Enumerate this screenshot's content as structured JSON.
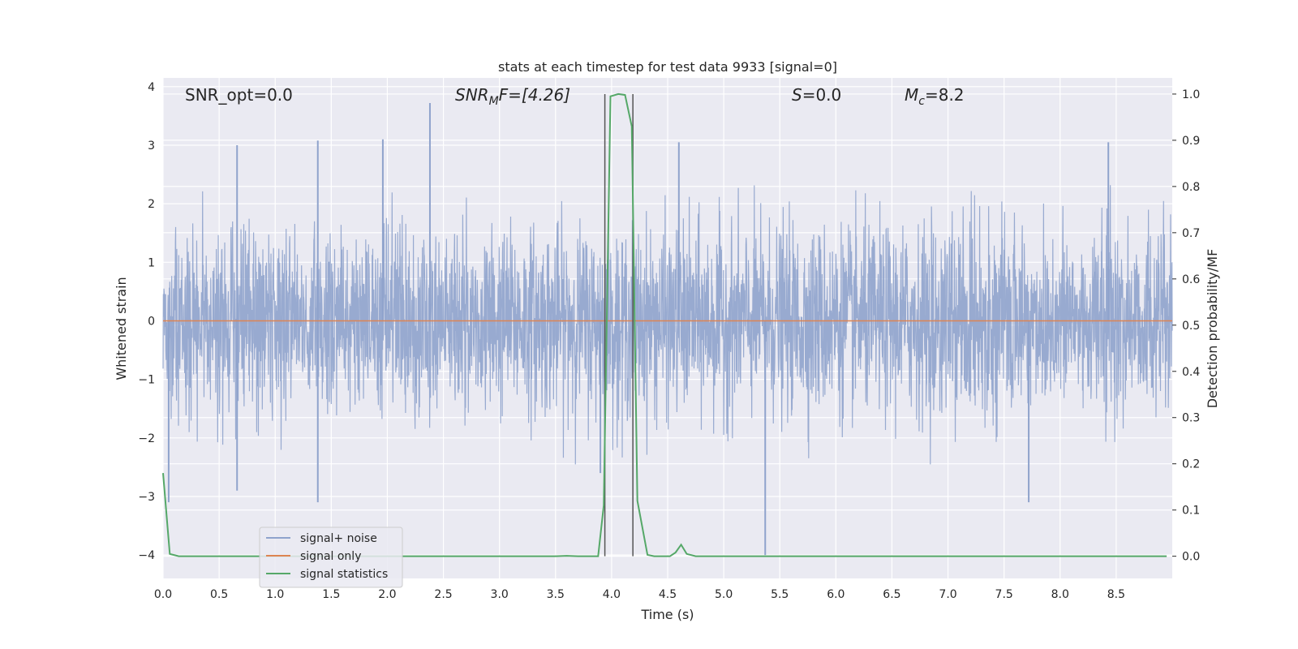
{
  "chart_data": {
    "type": "line",
    "title": "stats at each timestep for test data 9933 [signal=0]",
    "xlabel": "Time (s)",
    "ylabel_left": "Whitened strain",
    "ylabel_right": "Detection probability/MF",
    "xlim": [
      0.0,
      9.0
    ],
    "ylim_left": [
      -4.4,
      4.15
    ],
    "ylim_right": [
      -0.048,
      1.035
    ],
    "x_ticks": [
      "0.0",
      "0.5",
      "1.0",
      "1.5",
      "2.0",
      "2.5",
      "3.0",
      "3.5",
      "4.0",
      "4.5",
      "5.0",
      "5.5",
      "6.0",
      "6.5",
      "7.0",
      "7.5",
      "8.0",
      "8.5"
    ],
    "y_left_ticks": [
      "4",
      "3",
      "2",
      "1",
      "0",
      "−1",
      "−2",
      "−3",
      "−4"
    ],
    "y_right_ticks": [
      "1.0",
      "0.9",
      "0.8",
      "0.7",
      "0.6",
      "0.5",
      "0.4",
      "0.3",
      "0.2",
      "0.1",
      "0.0"
    ],
    "grid": true,
    "legend_position": "lower-left",
    "annotations": {
      "snr_opt": "SNR_opt=0.0",
      "snr_mf_main": "SNR",
      "snr_mf_sub": "M",
      "snr_mf_rest": "F=[4.26]",
      "s_main": "S",
      "s_rest": "=0.0",
      "mc_main": "M",
      "mc_sub": "c",
      "mc_rest": "=8.2"
    },
    "vertical_markers": [
      3.94,
      4.19
    ],
    "series": [
      {
        "name": "signal+ noise",
        "axis": "left",
        "color": "#8fa3cc",
        "description_values": "white-noise strain, roughly within ±2.2 with spikes up to about ±3.7",
        "spikes": [
          [
            0.66,
            3.0
          ],
          [
            1.38,
            3.08
          ],
          [
            1.96,
            3.1
          ],
          [
            2.38,
            3.72
          ],
          [
            4.6,
            3.05
          ],
          [
            8.43,
            3.05
          ],
          [
            0.66,
            -2.9
          ],
          [
            1.38,
            -3.1
          ],
          [
            3.9,
            -2.6
          ],
          [
            5.37,
            -4.0
          ],
          [
            7.72,
            -3.1
          ],
          [
            0.05,
            -3.1
          ]
        ]
      },
      {
        "name": "signal only",
        "axis": "left",
        "color": "#dd8452",
        "x": [
          0.0,
          9.0
        ],
        "y": [
          0.0,
          0.0
        ]
      },
      {
        "name": "signal statistics",
        "axis": "right",
        "color": "#55a868",
        "x": [
          0.0,
          0.06,
          0.14,
          0.5,
          1.0,
          1.5,
          2.0,
          2.5,
          3.0,
          3.5,
          3.6,
          3.7,
          3.88,
          3.93,
          3.99,
          4.06,
          4.12,
          4.18,
          4.23,
          4.32,
          4.38,
          4.45,
          4.52,
          4.57,
          4.62,
          4.67,
          4.75,
          5.0,
          5.5,
          6.0,
          6.5,
          7.0,
          7.5,
          8.0,
          8.5,
          8.95
        ],
        "y": [
          0.18,
          0.005,
          0.0,
          0.0,
          0.0,
          0.0,
          0.0,
          0.0,
          0.0,
          0.0,
          0.001,
          0.0,
          0.0,
          0.11,
          0.995,
          1.0,
          0.998,
          0.93,
          0.12,
          0.003,
          0.0,
          0.0,
          0.0,
          0.008,
          0.025,
          0.005,
          0.0,
          0.0,
          0.0,
          0.0,
          0.0,
          0.0,
          0.0,
          0.0,
          0.0,
          0.0
        ]
      }
    ]
  },
  "colors": {
    "axes_bg": "#eaeaf2",
    "grid": "#ffffff",
    "marker_line": "#555555",
    "text": "#262626"
  }
}
